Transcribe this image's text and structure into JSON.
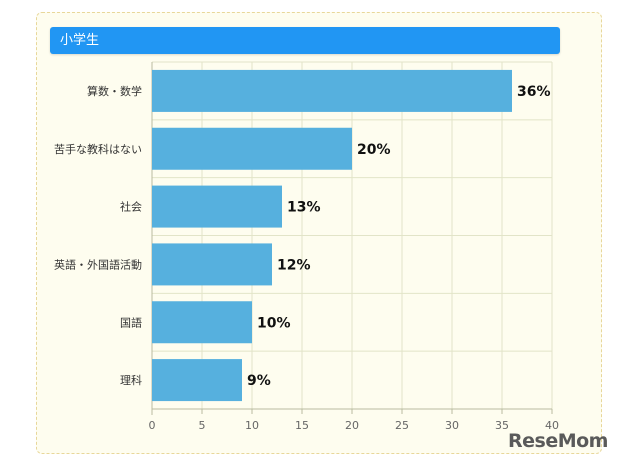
{
  "header": {
    "title": "小学生"
  },
  "watermark": {
    "text": "ReseMom"
  },
  "chart_data": {
    "type": "bar",
    "orientation": "horizontal",
    "title": "",
    "xlabel": "",
    "ylabel": "",
    "categories": [
      "算数・数学",
      "苦手な教科はない",
      "社会",
      "英語・外国語活動",
      "国語",
      "理科"
    ],
    "values": [
      36,
      20,
      13,
      12,
      10,
      9
    ],
    "value_labels": [
      "36%",
      "20%",
      "13%",
      "12%",
      "10%",
      "9%"
    ],
    "xlim": [
      0,
      40
    ],
    "xticks": [
      0,
      5,
      10,
      15,
      20,
      25,
      30,
      35,
      40
    ],
    "grid": true,
    "colors": {
      "bar": "#56b0de",
      "grid": "#e2e4c8",
      "axis": "#b9bba0",
      "tick_text": "#666666",
      "label_text": "#333333",
      "value_text": "#111111"
    }
  }
}
